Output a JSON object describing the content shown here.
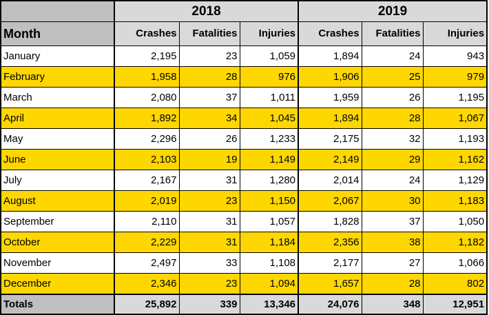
{
  "table": {
    "years": [
      "2018",
      "2019"
    ],
    "month_header": "Month",
    "columns": [
      "Crashes",
      "Fatalities",
      "Injuries",
      "Crashes",
      "Fatalities",
      "Injuries"
    ],
    "rows": [
      {
        "month": "January",
        "values": [
          "2,195",
          "23",
          "1,059",
          "1,894",
          "24",
          "943"
        ],
        "highlight": false
      },
      {
        "month": "February",
        "values": [
          "1,958",
          "28",
          "976",
          "1,906",
          "25",
          "979"
        ],
        "highlight": true
      },
      {
        "month": "March",
        "values": [
          "2,080",
          "37",
          "1,011",
          "1,959",
          "26",
          "1,195"
        ],
        "highlight": false
      },
      {
        "month": "April",
        "values": [
          "1,892",
          "34",
          "1,045",
          "1,894",
          "28",
          "1,067"
        ],
        "highlight": true
      },
      {
        "month": "May",
        "values": [
          "2,296",
          "26",
          "1,233",
          "2,175",
          "32",
          "1,193"
        ],
        "highlight": false
      },
      {
        "month": "June",
        "values": [
          "2,103",
          "19",
          "1,149",
          "2,149",
          "29",
          "1,162"
        ],
        "highlight": true
      },
      {
        "month": "July",
        "values": [
          "2,167",
          "31",
          "1,280",
          "2,014",
          "24",
          "1,129"
        ],
        "highlight": false
      },
      {
        "month": "August",
        "values": [
          "2,019",
          "23",
          "1,150",
          "2,067",
          "30",
          "1,183"
        ],
        "highlight": true
      },
      {
        "month": "September",
        "values": [
          "2,110",
          "31",
          "1,057",
          "1,828",
          "37",
          "1,050"
        ],
        "highlight": false
      },
      {
        "month": "October",
        "values": [
          "2,229",
          "31",
          "1,184",
          "2,356",
          "38",
          "1,182"
        ],
        "highlight": true
      },
      {
        "month": "November",
        "values": [
          "2,497",
          "33",
          "1,108",
          "2,177",
          "27",
          "1,066"
        ],
        "highlight": false
      },
      {
        "month": "December",
        "values": [
          "2,346",
          "23",
          "1,094",
          "1,657",
          "28",
          "802"
        ],
        "highlight": true
      }
    ],
    "totals": {
      "label": "Totals",
      "values": [
        "25,892",
        "339",
        "13,346",
        "24,076",
        "348",
        "12,951"
      ]
    }
  },
  "colors": {
    "highlight": "#ffd700",
    "header": "#d9d9d9",
    "month_header": "#bfbfbf"
  }
}
